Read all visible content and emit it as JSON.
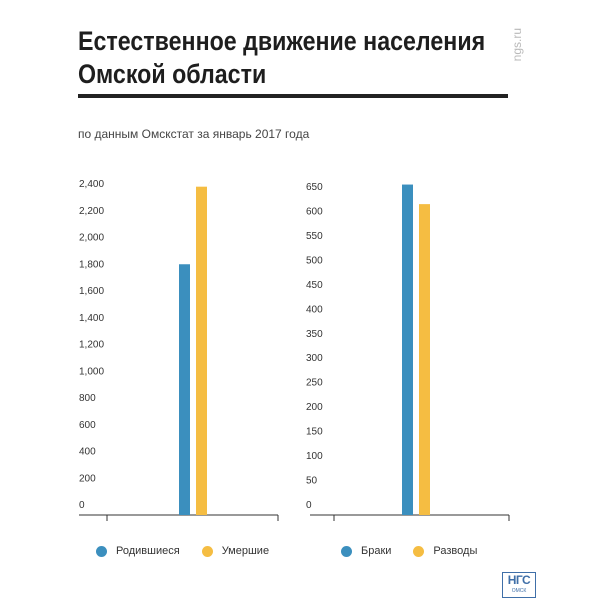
{
  "header": {
    "title_line1": "Естественное движение населения",
    "title_line2": "Омской области",
    "subtitle": "по данным Омскстат за январь 2017 года",
    "watermark": "ngs.ru"
  },
  "logo": {
    "main": "НГС",
    "sub": "ОМСК"
  },
  "colors": {
    "blue": "#3b8fbe",
    "yellow": "#f5bd42",
    "axis": "#333333"
  },
  "chart_data": [
    {
      "type": "bar",
      "title": "",
      "xlabel": "",
      "ylabel": "",
      "ylim": [
        0,
        2400
      ],
      "yticks": [
        0,
        200,
        400,
        600,
        800,
        1000,
        1200,
        1400,
        1600,
        1800,
        2000,
        2200,
        2400
      ],
      "ytick_labels": [
        "0",
        "200",
        "400",
        "600",
        "800",
        "1,000",
        "1,200",
        "1,400",
        "1,600",
        "1,800",
        "2,000",
        "2,200",
        "2,400"
      ],
      "categories": [
        ""
      ],
      "series": [
        {
          "name": "Родившиеся",
          "values": [
            1800
          ],
          "color": "#3b8fbe"
        },
        {
          "name": "Умершие",
          "values": [
            2380
          ],
          "color": "#f5bd42"
        }
      ],
      "grid": false,
      "legend": "bottom-left"
    },
    {
      "type": "bar",
      "title": "",
      "xlabel": "",
      "ylabel": "",
      "ylim": [
        0,
        650
      ],
      "yticks": [
        0,
        50,
        100,
        150,
        200,
        250,
        300,
        350,
        400,
        450,
        500,
        550,
        600,
        650
      ],
      "ytick_labels": [
        "0",
        "50",
        "100",
        "150",
        "200",
        "250",
        "300",
        "350",
        "400",
        "450",
        "500",
        "550",
        "600",
        "650"
      ],
      "categories": [
        ""
      ],
      "series": [
        {
          "name": "Браки",
          "values": [
            655
          ],
          "color": "#3b8fbe"
        },
        {
          "name": "Разводы",
          "values": [
            615
          ],
          "color": "#f5bd42"
        }
      ],
      "grid": false,
      "legend": "bottom-left"
    }
  ]
}
